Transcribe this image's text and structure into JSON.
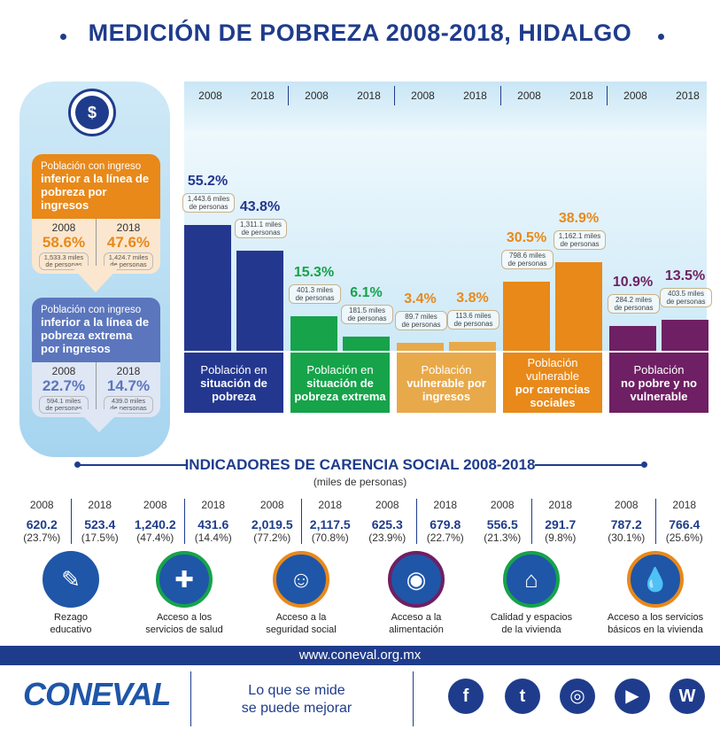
{
  "title": "MEDICIÓN DE POBREZA 2008-2018, HIDALGO",
  "years": [
    "2008",
    "2018"
  ],
  "side": {
    "icon": "money-icon",
    "card1": {
      "head_pre": "Población con ingreso",
      "head_bold": "inferior a la línea de pobreza por ingresos",
      "v2008": "58.6%",
      "n2008a": "1,533.3 miles",
      "n2008b": "de personas",
      "v2018": "47.6%",
      "n2018a": "1,424.7 miles",
      "n2018b": "de personas",
      "color": "#e8891a"
    },
    "card2": {
      "head_pre": "Población con ingreso",
      "head_bold": "inferior a la línea de pobreza extrema por ingresos",
      "v2008": "22.7%",
      "n2008a": "594.1 miles",
      "n2008b": "de personas",
      "v2018": "14.7%",
      "n2018a": "439.0 miles",
      "n2018b": "de personas",
      "color": "#5b76bd"
    }
  },
  "chart_data": {
    "type": "bar",
    "title": "MEDICIÓN DE POBREZA 2008-2018, HIDALGO",
    "categories": [
      "Población en situación de pobreza",
      "Población en situación de pobreza extrema",
      "Población vulnerable por ingresos",
      "Población vulnerable por carencias sociales",
      "Población no pobre y no vulnerable"
    ],
    "x": [
      "2008",
      "2018"
    ],
    "ylim": [
      0,
      60
    ],
    "grid": false,
    "series": [
      {
        "name": "Población en situación de pobreza",
        "color": "#24378f",
        "values": [
          55.2,
          43.8
        ],
        "labels": [
          "55.2%",
          "43.8%"
        ],
        "miles": [
          "1,443.6 miles",
          "1,311.1 miles"
        ]
      },
      {
        "name": "Población en situación de pobreza extrema",
        "color": "#16a34a",
        "values": [
          15.3,
          6.1
        ],
        "labels": [
          "15.3%",
          "6.1%"
        ],
        "miles": [
          "401.3 miles",
          "181.5 miles"
        ]
      },
      {
        "name": "Población vulnerable por ingresos",
        "color": "#e8a94a",
        "values": [
          3.4,
          3.8
        ],
        "labels": [
          "3.4%",
          "3.8%"
        ],
        "miles": [
          "89.7 miles",
          "113.6 miles"
        ]
      },
      {
        "name": "Población vulnerable por carencias sociales",
        "color": "#e8891a",
        "values": [
          30.5,
          38.9
        ],
        "labels": [
          "30.5%",
          "38.9%"
        ],
        "miles": [
          "798.6 miles",
          "1,162.1 miles"
        ]
      },
      {
        "name": "Población no pobre y no vulnerable",
        "color": "#6f1f63",
        "values": [
          10.9,
          13.5
        ],
        "labels": [
          "10.9%",
          "13.5%"
        ],
        "miles": [
          "284.2 miles",
          "403.5 miles"
        ]
      }
    ],
    "miles_suffix": "de personas"
  },
  "categories_labels": [
    {
      "pre": "Población en",
      "bold": "situación de pobreza",
      "color": "#24378f"
    },
    {
      "pre": "Población en",
      "bold": "situación de pobreza extrema",
      "color": "#16a34a"
    },
    {
      "pre": "Población",
      "bold": "vulnerable por ingresos",
      "color": "#e8a94a"
    },
    {
      "pre": "Población vulnerable",
      "bold": "por carencias sociales",
      "color": "#e8891a"
    },
    {
      "pre": "Población",
      "bold": "no pobre y no vulnerable",
      "color": "#6f1f63"
    }
  ],
  "indicators": {
    "title": "INDICADORES DE CARENCIA SOCIAL 2008-2018",
    "subtitle": "(miles de personas)",
    "items": [
      {
        "v2008": "620.2",
        "p2008": "(23.7%)",
        "v2018": "523.4",
        "p2018": "(17.5%)",
        "label1": "Rezago",
        "label2": "educativo",
        "icon": "pencil-icon",
        "ring": "#1f56a8",
        "glyph": "✎"
      },
      {
        "v2008": "1,240.2",
        "p2008": "(47.4%)",
        "v2018": "431.6",
        "p2018": "(14.4%)",
        "label1": "Acceso a los",
        "label2": "servicios de salud",
        "icon": "doctor-icon",
        "ring": "#16a34a",
        "glyph": "✚"
      },
      {
        "v2008": "2,019.5",
        "p2008": "(77.2%)",
        "v2018": "2,117.5",
        "p2018": "(70.8%)",
        "label1": "Acceso a la",
        "label2": "seguridad social",
        "icon": "family-icon",
        "ring": "#e8891a",
        "glyph": "☺"
      },
      {
        "v2008": "625.3",
        "p2008": "(23.9%)",
        "v2018": "679.8",
        "p2018": "(22.7%)",
        "label1": "Acceso a la",
        "label2": "alimentación",
        "icon": "plate-icon",
        "ring": "#6f1f63",
        "glyph": "◉"
      },
      {
        "v2008": "556.5",
        "p2008": "(21.3%)",
        "v2018": "291.7",
        "p2018": "(9.8%)",
        "label1": "Calidad y espacios",
        "label2": "de la vivienda",
        "icon": "house-icon",
        "ring": "#16a34a",
        "glyph": "⌂"
      },
      {
        "v2008": "787.2",
        "p2008": "(30.1%)",
        "v2018": "766.4",
        "p2018": "(25.6%)",
        "label1": "Acceso a los servicios",
        "label2": "básicos en la vivienda",
        "icon": "faucet-icon",
        "ring": "#e8891a",
        "glyph": "💧"
      }
    ]
  },
  "footer": {
    "url": "www.coneval.org.mx",
    "logo": "CONEVAL",
    "slogan1": "Lo que se mide",
    "slogan2": "se puede mejorar",
    "social": [
      {
        "icon": "facebook-icon",
        "glyph": "f"
      },
      {
        "icon": "twitter-icon",
        "glyph": "t"
      },
      {
        "icon": "instagram-icon",
        "glyph": "◎"
      },
      {
        "icon": "youtube-icon",
        "glyph": "▶"
      },
      {
        "icon": "wordpress-icon",
        "glyph": "W"
      }
    ]
  }
}
